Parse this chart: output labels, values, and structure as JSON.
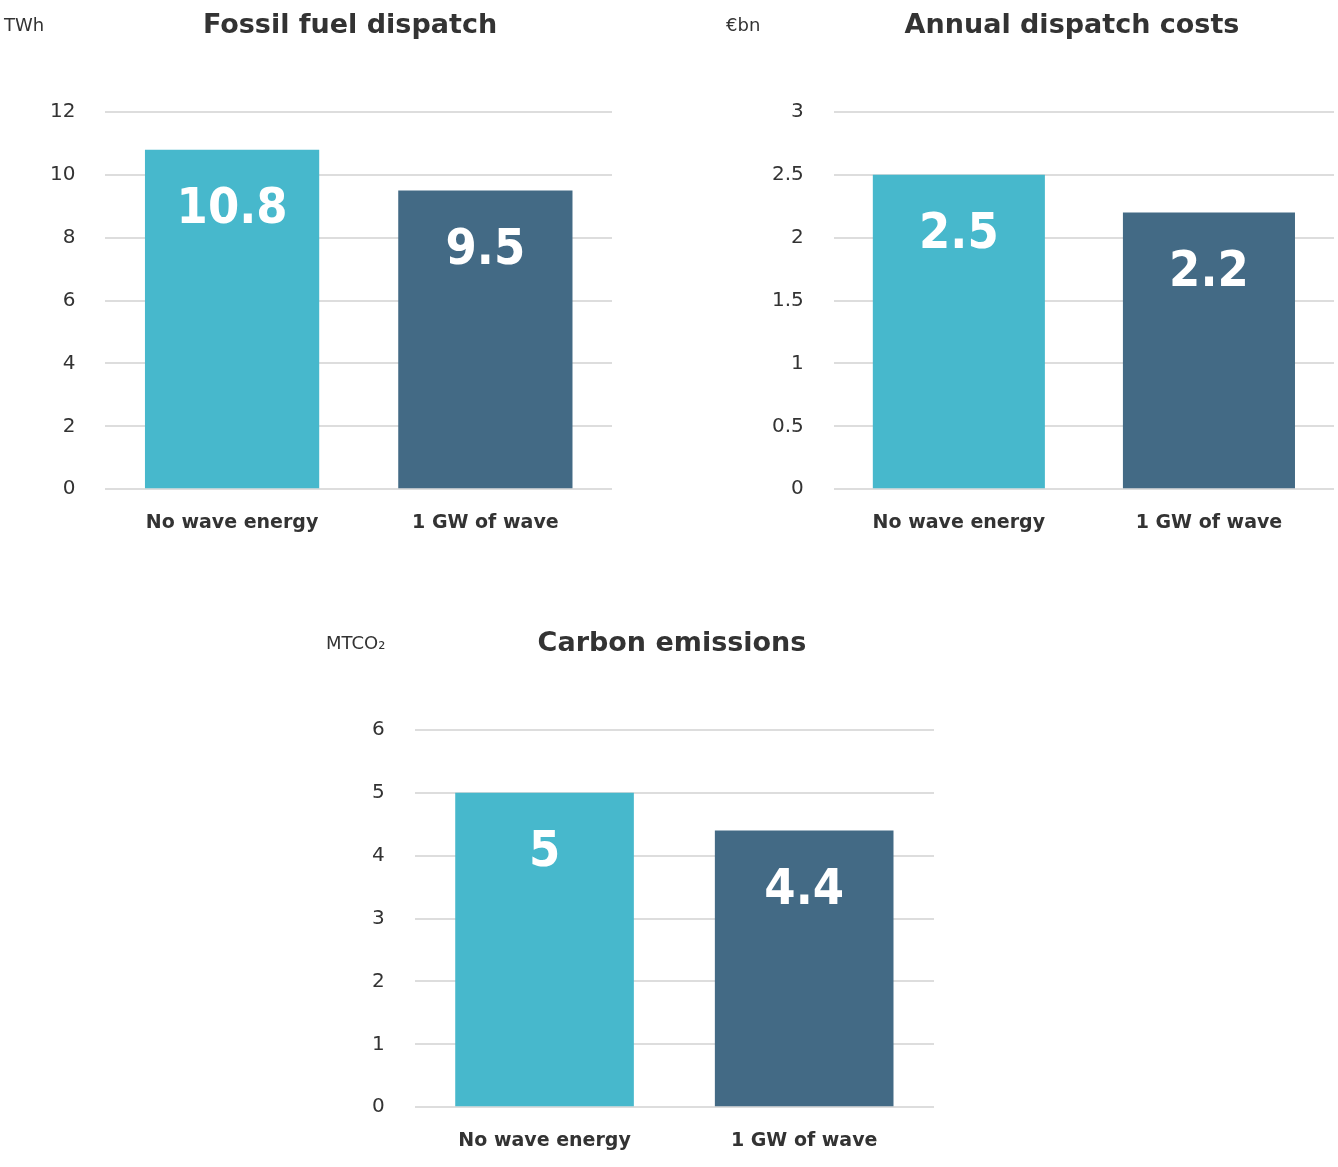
{
  "chart_data": [
    {
      "type": "bar",
      "title": "Fossil fuel dispatch",
      "ylabel": "TWh",
      "categories": [
        "No wave energy",
        "1 GW of wave"
      ],
      "values": [
        10.8,
        9.5
      ],
      "colors": [
        "#47b8cc",
        "#436a85"
      ],
      "ylim": [
        0,
        12
      ],
      "yticks": [
        0,
        2,
        4,
        6,
        8,
        10,
        12
      ],
      "grid": "y",
      "data_labels": true
    },
    {
      "type": "bar",
      "title": "Annual dispatch costs",
      "ylabel": "€bn",
      "categories": [
        "No wave energy",
        "1 GW of wave"
      ],
      "values": [
        2.5,
        2.2
      ],
      "colors": [
        "#47b8cc",
        "#436a85"
      ],
      "ylim": [
        0,
        3
      ],
      "yticks": [
        0,
        0.5,
        1,
        1.5,
        2,
        2.5,
        3
      ],
      "grid": "y",
      "data_labels": true
    },
    {
      "type": "bar",
      "title": "Carbon emissions",
      "ylabel": "MTCO₂",
      "categories": [
        "No wave energy",
        "1 GW of wave"
      ],
      "values": [
        5,
        4.4
      ],
      "colors": [
        "#47b8cc",
        "#436a85"
      ],
      "ylim": [
        0,
        6
      ],
      "yticks": [
        0,
        1,
        2,
        3,
        4,
        5,
        6
      ],
      "grid": "y",
      "data_labels": true
    }
  ]
}
